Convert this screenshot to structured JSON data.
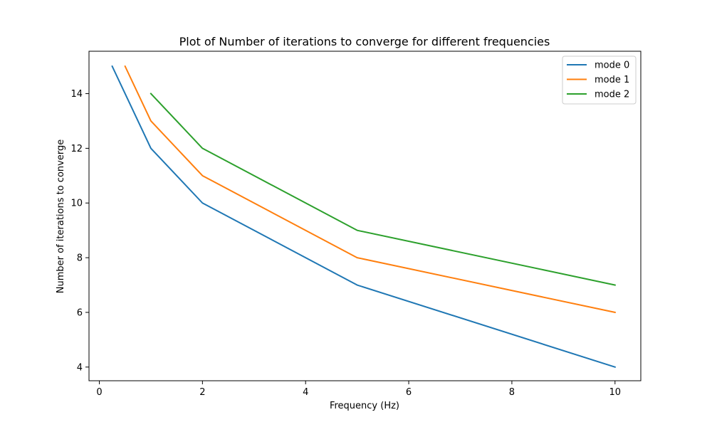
{
  "chart_data": {
    "type": "line",
    "title": "Plot of Number of iterations to converge for different frequencies",
    "xlabel": "Frequency (Hz)",
    "ylabel": "Number of iterations to converge",
    "xlim": [
      -0.2,
      10.5
    ],
    "ylim": [
      3.5,
      15.55
    ],
    "xticks": [
      0,
      2,
      4,
      6,
      8,
      10
    ],
    "yticks": [
      4,
      6,
      8,
      10,
      12,
      14
    ],
    "grid": false,
    "legend_position": "top-right",
    "series": [
      {
        "name": "mode 0",
        "color": "#1f77b4",
        "x": [
          0.25,
          1,
          2,
          5,
          10
        ],
        "y": [
          15,
          12,
          10,
          7,
          4
        ]
      },
      {
        "name": "mode 1",
        "color": "#ff7f0e",
        "x": [
          0.5,
          1,
          2,
          5,
          10
        ],
        "y": [
          15,
          13,
          11,
          8,
          6
        ]
      },
      {
        "name": "mode 2",
        "color": "#2ca02c",
        "x": [
          1,
          2,
          5,
          10
        ],
        "y": [
          14,
          12,
          9,
          7
        ]
      }
    ]
  }
}
